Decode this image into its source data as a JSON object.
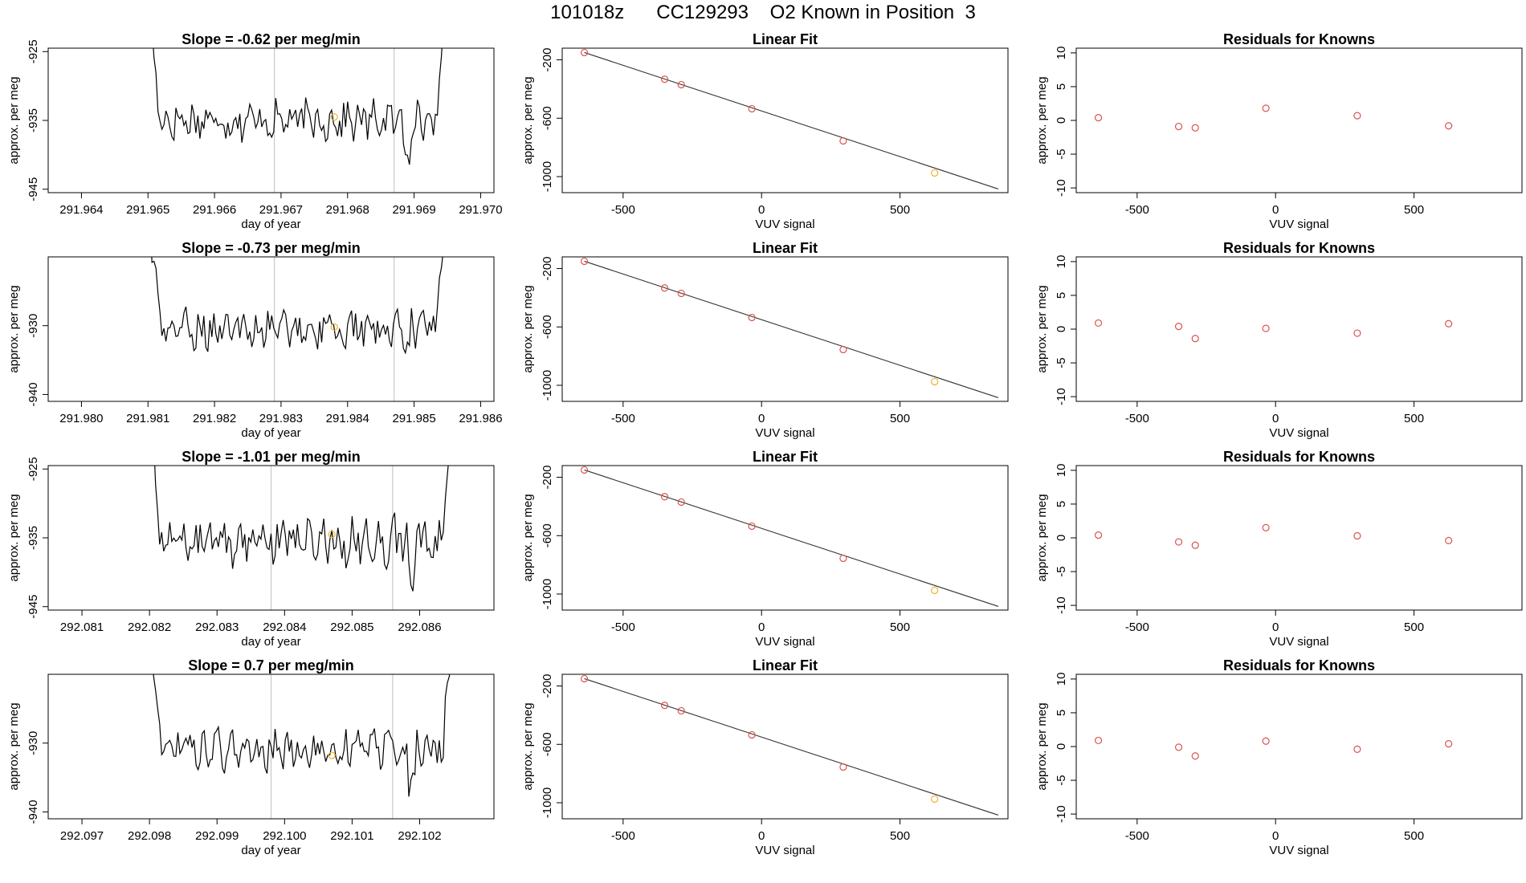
{
  "page": {
    "title": "101018z      CC129293    O2 Known in Position  3"
  },
  "chart_data": [
    {
      "type": "line",
      "title": "Slope =  -0.62  per meg/min",
      "xlabel": "day of year",
      "ylabel": "approx. per meg",
      "xlim": [
        291.9635,
        291.9702
      ],
      "ylim": [
        -945.5,
        -924.5
      ],
      "xticks": [
        291.964,
        291.965,
        291.966,
        291.967,
        291.968,
        291.969,
        291.97
      ],
      "xtick_labels": [
        "291.964",
        "291.965",
        "291.966",
        "291.967",
        "291.968",
        "291.969",
        "291.970"
      ],
      "yticks": [
        -925,
        -935,
        -945
      ],
      "ytick_labels": [
        "-925",
        "-935",
        "-945"
      ],
      "x_start": 291.965,
      "x_end": 291.9695,
      "baseline": -935,
      "amplitude": 2.3,
      "vlines": [
        291.9669,
        291.9687
      ],
      "highlight": {
        "x": 291.9678,
        "y": -934.5
      }
    },
    {
      "type": "scatter",
      "title": "Linear Fit",
      "xlabel": "VUV signal",
      "ylabel": "approx. per meg",
      "xlim": [
        -720,
        890
      ],
      "ylim": [
        -1110,
        -120
      ],
      "xticks": [
        -500,
        0,
        500
      ],
      "xtick_labels": [
        "-500",
        "0",
        "500"
      ],
      "yticks": [
        -200,
        -600,
        -1000
      ],
      "ytick_labels": [
        "-200",
        "-600",
        "-1000"
      ],
      "x": [
        -640,
        -350,
        -290,
        -35,
        295,
        625
      ],
      "y": [
        -150,
        -333,
        -370,
        -535,
        -755,
        -975
      ],
      "highlight_index": 5,
      "fit_line": [
        [
          -640,
          -150
        ],
        [
          855,
          -1085
        ]
      ]
    },
    {
      "type": "scatter",
      "title": "Residuals for Knowns",
      "xlabel": "VUV signal",
      "ylabel": "approx. per meg",
      "xlim": [
        -720,
        890
      ],
      "ylim": [
        -10.7,
        10.7
      ],
      "xticks": [
        -500,
        0,
        500
      ],
      "xtick_labels": [
        "-500",
        "0",
        "500"
      ],
      "yticks": [
        -10,
        -5,
        0,
        5,
        10
      ],
      "ytick_labels": [
        "-10",
        "-5",
        "0",
        "5",
        "10"
      ],
      "x": [
        -640,
        -350,
        -290,
        -35,
        295,
        625
      ],
      "y": [
        0.4,
        -0.9,
        -1.1,
        1.8,
        0.7,
        -0.8
      ]
    },
    {
      "type": "line",
      "title": "Slope =  -0.73  per meg/min",
      "xlabel": "day of year",
      "ylabel": "approx. per meg",
      "xlim": [
        291.9795,
        291.9862
      ],
      "ylim": [
        -941,
        -920
      ],
      "xticks": [
        291.98,
        291.981,
        291.982,
        291.983,
        291.984,
        291.985,
        291.986
      ],
      "xtick_labels": [
        "291.980",
        "291.981",
        "291.982",
        "291.983",
        "291.984",
        "291.985",
        "291.986"
      ],
      "yticks": [
        -930,
        -940
      ],
      "ytick_labels": [
        "-930",
        "-940"
      ],
      "x_start": 291.981,
      "x_end": 291.9855,
      "baseline": -930.5,
      "amplitude": 2.3,
      "vlines": [
        291.9829,
        291.9847
      ],
      "highlight": {
        "x": 291.9838,
        "y": -930.2
      }
    },
    {
      "type": "scatter",
      "title": "Linear Fit",
      "xlabel": "VUV signal",
      "ylabel": "approx. per meg",
      "xlim": [
        -720,
        890
      ],
      "ylim": [
        -1110,
        -120
      ],
      "xticks": [
        -500,
        0,
        500
      ],
      "xtick_labels": [
        "-500",
        "0",
        "500"
      ],
      "yticks": [
        -200,
        -600,
        -1000
      ],
      "ytick_labels": [
        "-200",
        "-600",
        "-1000"
      ],
      "x": [
        -640,
        -350,
        -290,
        -35,
        295,
        625
      ],
      "y": [
        -150,
        -333,
        -370,
        -535,
        -755,
        -975
      ],
      "highlight_index": 5,
      "fit_line": [
        [
          -640,
          -150
        ],
        [
          855,
          -1085
        ]
      ]
    },
    {
      "type": "scatter",
      "title": "Residuals for Knowns",
      "xlabel": "VUV signal",
      "ylabel": "approx. per meg",
      "xlim": [
        -720,
        890
      ],
      "ylim": [
        -10.7,
        10.7
      ],
      "xticks": [
        -500,
        0,
        500
      ],
      "xtick_labels": [
        "-500",
        "0",
        "500"
      ],
      "yticks": [
        -10,
        -5,
        0,
        5,
        10
      ],
      "ytick_labels": [
        "-10",
        "-5",
        "0",
        "5",
        "10"
      ],
      "x": [
        -640,
        -350,
        -290,
        -35,
        295,
        625
      ],
      "y": [
        0.9,
        0.4,
        -1.4,
        0.1,
        -0.6,
        0.8
      ]
    },
    {
      "type": "line",
      "title": "Slope =  -1.01  per meg/min",
      "xlabel": "day of year",
      "ylabel": "approx. per meg",
      "xlim": [
        292.0805,
        292.0871
      ],
      "ylim": [
        -945.5,
        -924.5
      ],
      "xticks": [
        292.081,
        292.082,
        292.083,
        292.084,
        292.085,
        292.086
      ],
      "xtick_labels": [
        "292.081",
        "292.082",
        "292.083",
        "292.084",
        "292.085",
        "292.086"
      ],
      "yticks": [
        -925,
        -935,
        -945
      ],
      "ytick_labels": [
        "-925",
        "-935",
        "-945"
      ],
      "x_start": 292.082,
      "x_end": 292.0865,
      "baseline": -935.5,
      "amplitude": 2.8,
      "vlines": [
        292.0838,
        292.0856
      ],
      "highlight": {
        "x": 292.0847,
        "y": -934.5
      }
    },
    {
      "type": "scatter",
      "title": "Linear Fit",
      "xlabel": "VUV signal",
      "ylabel": "approx. per meg",
      "xlim": [
        -720,
        890
      ],
      "ylim": [
        -1110,
        -120
      ],
      "xticks": [
        -500,
        0,
        500
      ],
      "xtick_labels": [
        "-500",
        "0",
        "500"
      ],
      "yticks": [
        -200,
        -600,
        -1000
      ],
      "ytick_labels": [
        "-200",
        "-600",
        "-1000"
      ],
      "x": [
        -640,
        -350,
        -290,
        -35,
        295,
        625
      ],
      "y": [
        -150,
        -333,
        -370,
        -535,
        -755,
        -975
      ],
      "highlight_index": 5,
      "fit_line": [
        [
          -640,
          -150
        ],
        [
          855,
          -1085
        ]
      ]
    },
    {
      "type": "scatter",
      "title": "Residuals for Knowns",
      "xlabel": "VUV signal",
      "ylabel": "approx. per meg",
      "xlim": [
        -720,
        890
      ],
      "ylim": [
        -10.7,
        10.7
      ],
      "xticks": [
        -500,
        0,
        500
      ],
      "xtick_labels": [
        "-500",
        "0",
        "500"
      ],
      "yticks": [
        -10,
        -5,
        0,
        5,
        10
      ],
      "ytick_labels": [
        "-10",
        "-5",
        "0",
        "5",
        "10"
      ],
      "x": [
        -640,
        -350,
        -290,
        -35,
        295,
        625
      ],
      "y": [
        0.4,
        -0.6,
        -1.1,
        1.5,
        0.3,
        -0.4
      ]
    },
    {
      "type": "line",
      "title": "Slope =  0.7  per meg/min",
      "xlabel": "day of year",
      "ylabel": "approx. per meg",
      "xlim": [
        292.0965,
        292.1031
      ],
      "ylim": [
        -941,
        -920
      ],
      "xticks": [
        292.097,
        292.098,
        292.099,
        292.1,
        292.101,
        292.102
      ],
      "xtick_labels": [
        "292.097",
        "292.098",
        "292.099",
        "292.100",
        "292.101",
        "292.102"
      ],
      "yticks": [
        -930,
        -940
      ],
      "ytick_labels": [
        "-930",
        "-940"
      ],
      "x_start": 292.098,
      "x_end": 292.1025,
      "baseline": -931,
      "amplitude": 2.3,
      "vlines": [
        292.0998,
        292.1016
      ],
      "highlight": {
        "x": 292.1007,
        "y": -931.8
      }
    },
    {
      "type": "scatter",
      "title": "Linear Fit",
      "xlabel": "VUV signal",
      "ylabel": "approx. per meg",
      "xlim": [
        -720,
        890
      ],
      "ylim": [
        -1110,
        -120
      ],
      "xticks": [
        -500,
        0,
        500
      ],
      "xtick_labels": [
        "-500",
        "0",
        "500"
      ],
      "yticks": [
        -200,
        -600,
        -1000
      ],
      "ytick_labels": [
        "-200",
        "-600",
        "-1000"
      ],
      "x": [
        -640,
        -350,
        -290,
        -35,
        295,
        625
      ],
      "y": [
        -150,
        -333,
        -370,
        -535,
        -755,
        -975
      ],
      "highlight_index": 5,
      "fit_line": [
        [
          -640,
          -150
        ],
        [
          855,
          -1085
        ]
      ]
    },
    {
      "type": "scatter",
      "title": "Residuals for Knowns",
      "xlabel": "VUV signal",
      "ylabel": "approx. per meg",
      "xlim": [
        -720,
        890
      ],
      "ylim": [
        -10.7,
        10.7
      ],
      "xticks": [
        -500,
        0,
        500
      ],
      "xtick_labels": [
        "-500",
        "0",
        "500"
      ],
      "yticks": [
        -10,
        -5,
        0,
        5,
        10
      ],
      "ytick_labels": [
        "-10",
        "-5",
        "0",
        "5",
        "10"
      ],
      "x": [
        -640,
        -350,
        -290,
        -35,
        295,
        625
      ],
      "y": [
        0.9,
        -0.1,
        -1.4,
        0.8,
        -0.4,
        0.4
      ]
    }
  ],
  "colors": {
    "line": "#000000",
    "point": "#d9534f",
    "highlight": "#f0b030",
    "vline": "#c8c8c8",
    "fit": "#333333"
  }
}
